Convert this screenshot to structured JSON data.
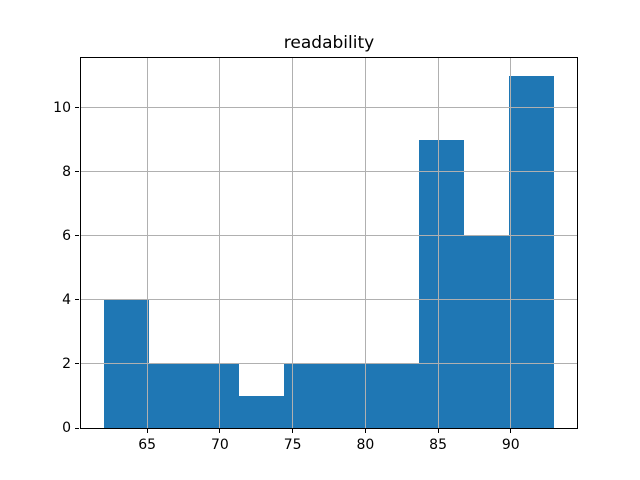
{
  "chart_data": {
    "type": "bar",
    "subtype": "histogram",
    "title": "readability",
    "xlabel": "",
    "ylabel": "",
    "bin_edges": [
      62.0,
      65.1,
      68.2,
      71.3,
      74.4,
      77.5,
      80.6,
      83.7,
      86.8,
      89.9,
      93.0
    ],
    "values": [
      4,
      2,
      2,
      1,
      2,
      2,
      2,
      9,
      6,
      11
    ],
    "xticks": [
      65,
      70,
      75,
      80,
      85,
      90
    ],
    "yticks": [
      0,
      2,
      4,
      6,
      8,
      10
    ],
    "xlim": [
      60.45,
      94.55
    ],
    "ylim": [
      0,
      11.55
    ],
    "grid": true,
    "legend": null,
    "bar_color": "#1f77b4",
    "grid_color": "#b0b0b0",
    "spine_color": "#000000",
    "background_color": "#ffffff"
  }
}
